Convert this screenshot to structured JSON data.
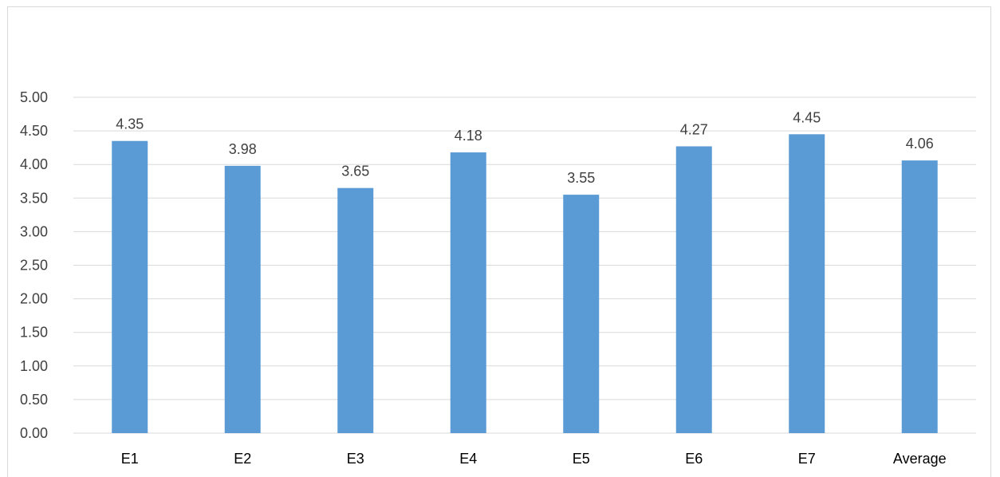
{
  "chart_data": {
    "type": "bar",
    "title": "",
    "categories": [
      "E1",
      "E2",
      "E3",
      "E4",
      "E5",
      "E6",
      "E7",
      "Average"
    ],
    "values": [
      4.35,
      3.98,
      3.65,
      4.18,
      3.55,
      4.27,
      4.45,
      4.06
    ],
    "value_labels": [
      "4.35",
      "3.98",
      "3.65",
      "4.18",
      "3.55",
      "4.27",
      "4.45",
      "4.06"
    ],
    "ylim": [
      0,
      5
    ],
    "yticks": [
      "0.00",
      "0.50",
      "1.00",
      "1.50",
      "2.00",
      "2.50",
      "3.00",
      "3.50",
      "4.00",
      "4.50",
      "5.00"
    ],
    "grid": true,
    "legend": "none",
    "bar_color": "#5b9bd5",
    "gridline_color": "#d9d9d9"
  }
}
